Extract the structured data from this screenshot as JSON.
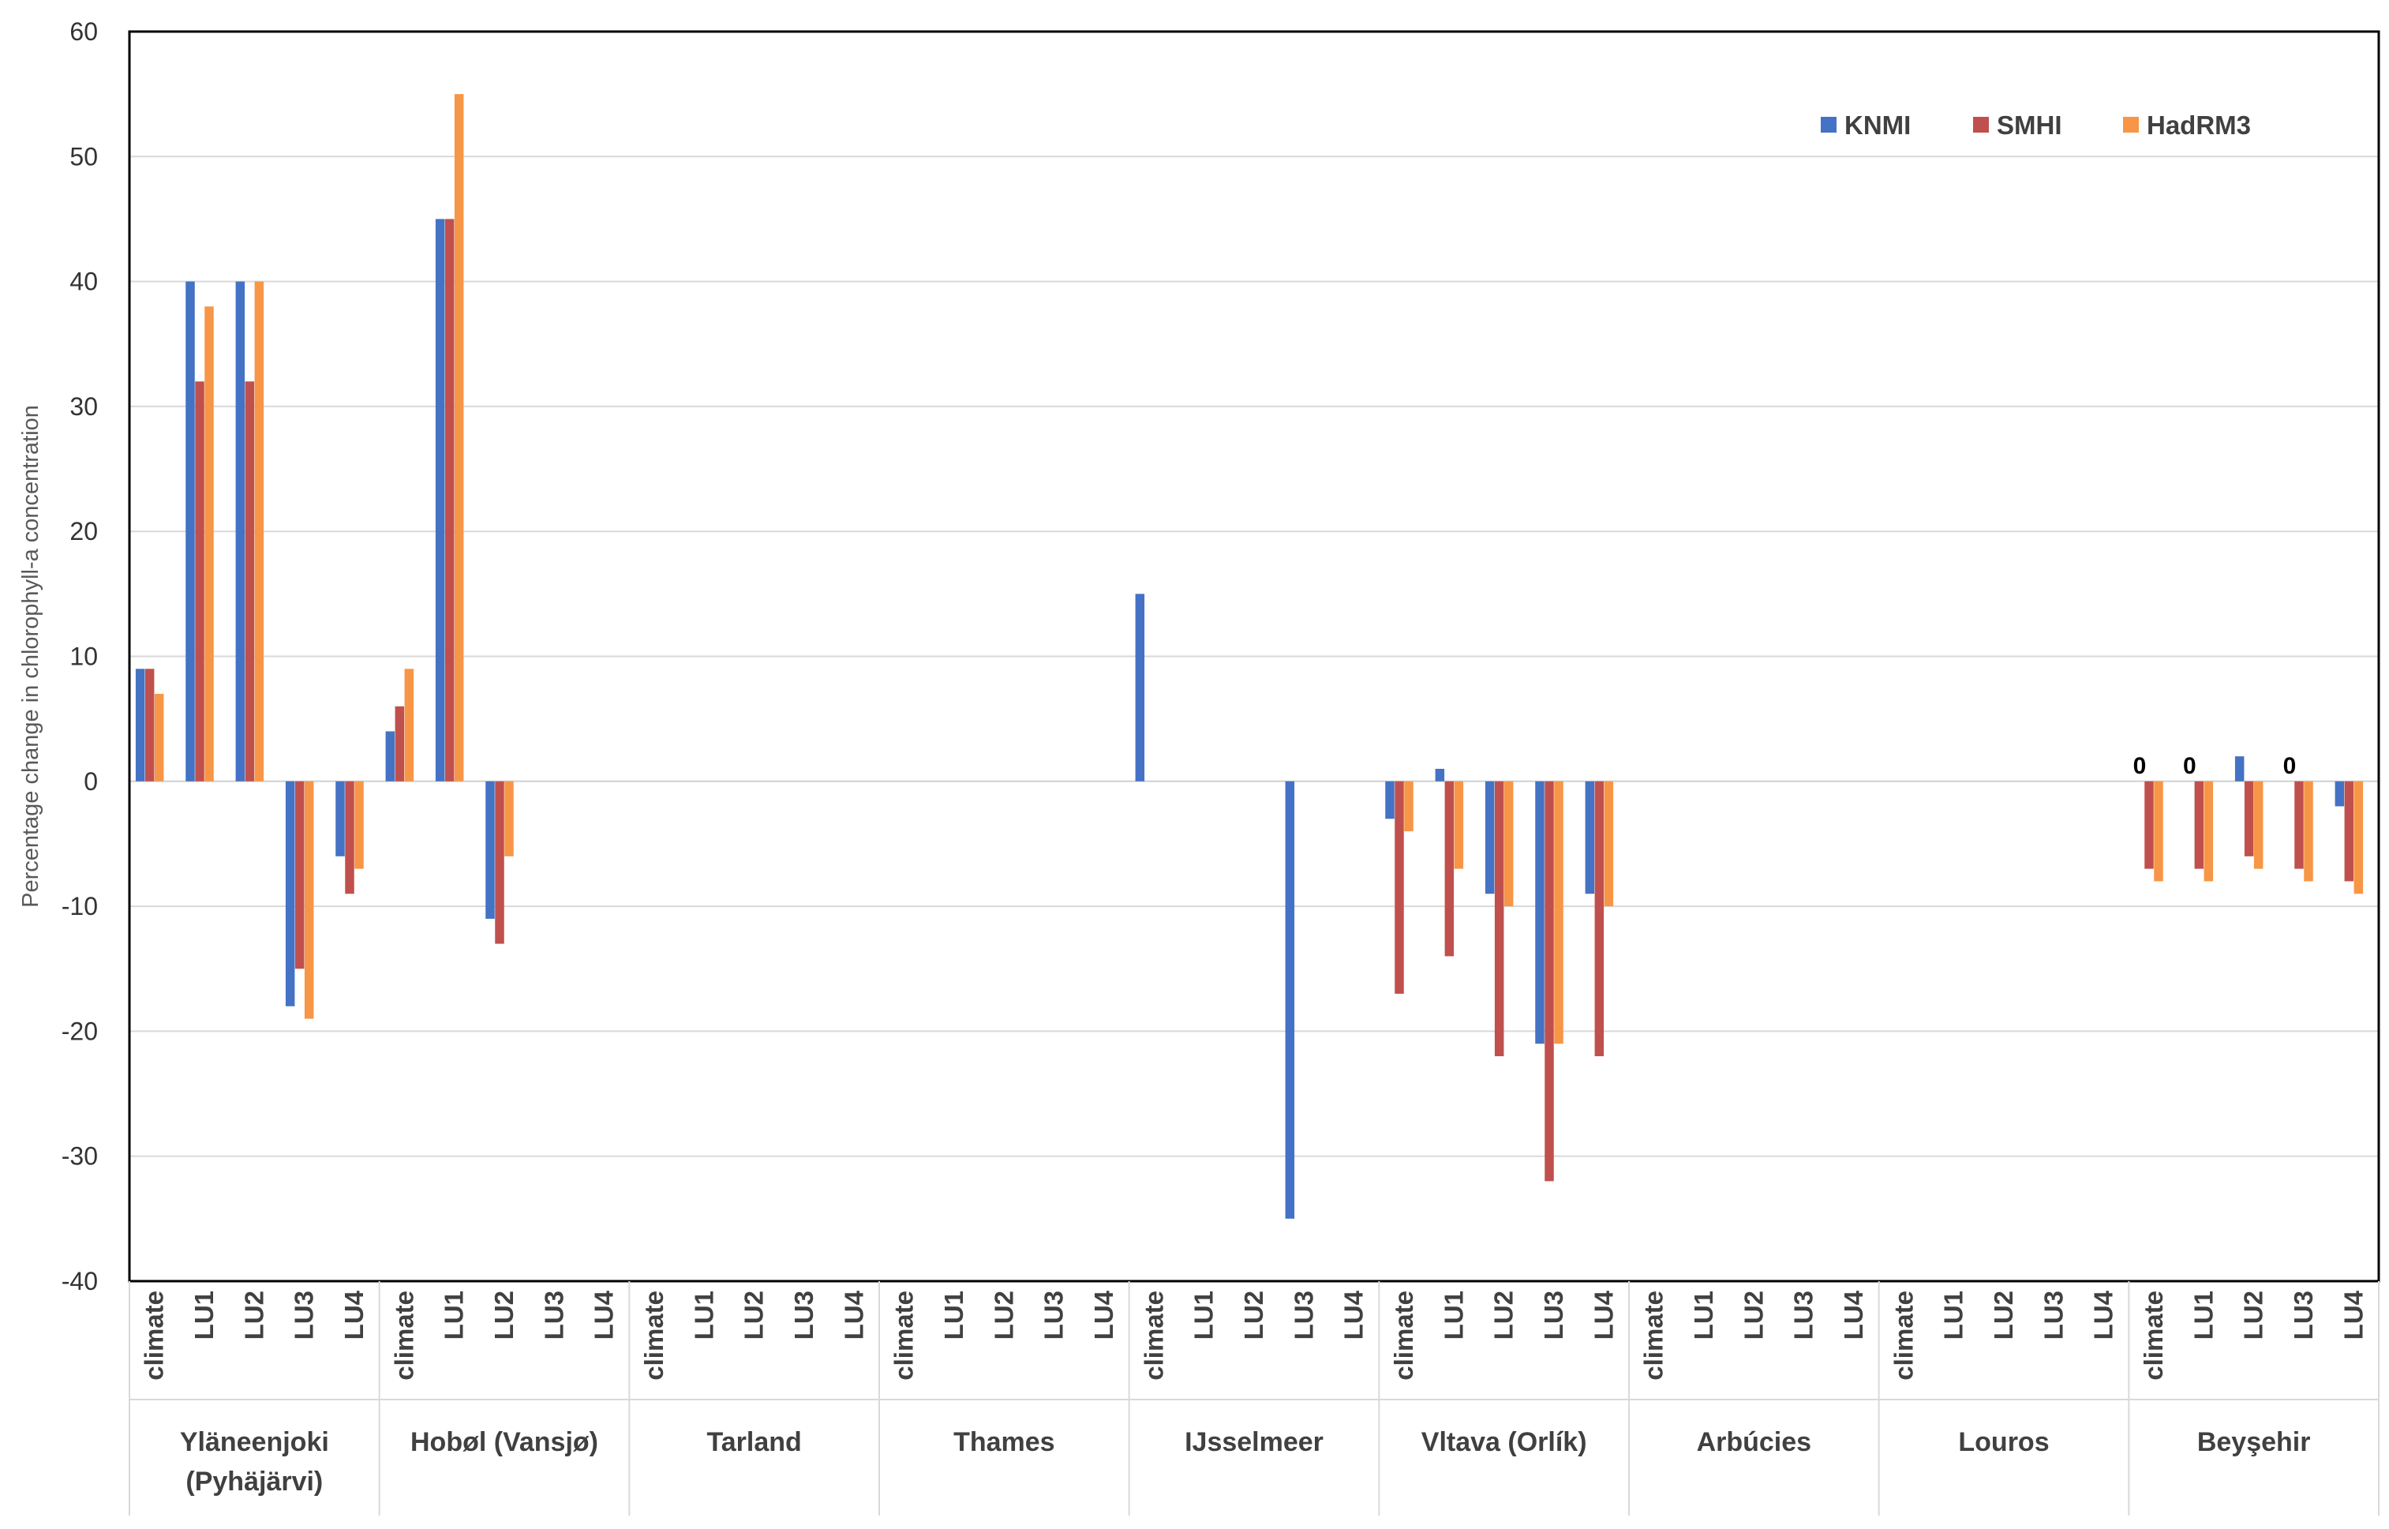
{
  "chart_data": {
    "type": "bar",
    "title": "",
    "ylabel": "Percentage change in chlorophyll-a concentration",
    "xlabel": "",
    "ylim": [
      -40,
      60
    ],
    "yticks": [
      60,
      50,
      40,
      30,
      20,
      10,
      0,
      -10,
      -20,
      -30,
      -40
    ],
    "grid": "horizontal",
    "legend_position": "top-right",
    "colors": {
      "KNMI": "#4472C4",
      "SMHI": "#C0504D",
      "HadRM3": "#F79646"
    },
    "series_names": [
      "KNMI",
      "SMHI",
      "HadRM3"
    ],
    "groups": [
      {
        "name": "Yläneenjoki",
        "name2": "(Pyhäjärvi)",
        "scenarios": [
          "climate",
          "LU1",
          "LU2",
          "LU3",
          "LU4"
        ],
        "values": {
          "KNMI": [
            9,
            40,
            40,
            -18,
            -6
          ],
          "SMHI": [
            9,
            32,
            32,
            -15,
            -9
          ],
          "HadRM3": [
            7,
            38,
            40,
            -19,
            -7
          ]
        }
      },
      {
        "name": "Hobøl (Vansjø)",
        "scenarios": [
          "climate",
          "LU1",
          "LU2",
          "LU3",
          "LU4"
        ],
        "values": {
          "KNMI": [
            4,
            45,
            -11,
            null,
            null
          ],
          "SMHI": [
            6,
            45,
            -13,
            null,
            null
          ],
          "HadRM3": [
            9,
            55,
            -6,
            null,
            null
          ]
        }
      },
      {
        "name": "Tarland",
        "scenarios": [
          "climate",
          "LU1",
          "LU2",
          "LU3",
          "LU4"
        ],
        "values": {
          "KNMI": [
            null,
            null,
            null,
            null,
            null
          ],
          "SMHI": [
            null,
            null,
            null,
            null,
            null
          ],
          "HadRM3": [
            null,
            null,
            null,
            null,
            null
          ]
        }
      },
      {
        "name": "Thames",
        "scenarios": [
          "climate",
          "LU1",
          "LU2",
          "LU3",
          "LU4"
        ],
        "values": {
          "KNMI": [
            null,
            null,
            null,
            null,
            null
          ],
          "SMHI": [
            null,
            null,
            null,
            null,
            null
          ],
          "HadRM3": [
            null,
            null,
            null,
            null,
            null
          ]
        }
      },
      {
        "name": "IJsselmeer",
        "scenarios": [
          "climate",
          "LU1",
          "LU2",
          "LU3",
          "LU4"
        ],
        "values": {
          "KNMI": [
            15,
            null,
            null,
            -35,
            null
          ],
          "SMHI": [
            null,
            null,
            null,
            null,
            null
          ],
          "HadRM3": [
            null,
            null,
            null,
            null,
            null
          ]
        }
      },
      {
        "name": "Vltava (Orlík)",
        "scenarios": [
          "climate",
          "LU1",
          "LU2",
          "LU3",
          "LU4"
        ],
        "values": {
          "KNMI": [
            -3,
            1,
            -9,
            -21,
            -9
          ],
          "SMHI": [
            -17,
            -14,
            -22,
            -32,
            -22
          ],
          "HadRM3": [
            -4,
            -7,
            -10,
            -21,
            -10
          ]
        }
      },
      {
        "name": "Arbúcies",
        "scenarios": [
          "climate",
          "LU1",
          "LU2",
          "LU3",
          "LU4"
        ],
        "values": {
          "KNMI": [
            null,
            null,
            null,
            null,
            null
          ],
          "SMHI": [
            null,
            null,
            null,
            null,
            null
          ],
          "HadRM3": [
            null,
            null,
            null,
            null,
            null
          ]
        }
      },
      {
        "name": "Louros",
        "scenarios": [
          "climate",
          "LU1",
          "LU2",
          "LU3",
          "LU4"
        ],
        "values": {
          "KNMI": [
            null,
            null,
            null,
            null,
            null
          ],
          "SMHI": [
            null,
            null,
            null,
            null,
            null
          ],
          "HadRM3": [
            null,
            null,
            null,
            null,
            null
          ]
        }
      },
      {
        "name": "Beyşehir",
        "scenarios": [
          "climate",
          "LU1",
          "LU2",
          "LU3",
          "LU4"
        ],
        "values": {
          "KNMI": [
            0,
            0,
            2,
            0,
            -2
          ],
          "SMHI": [
            -7,
            -7,
            -6,
            -7,
            -8
          ],
          "HadRM3": [
            -8,
            -8,
            -7,
            -8,
            -9
          ]
        },
        "zero_labels": [
          "0",
          "0",
          null,
          "0",
          null
        ]
      }
    ]
  }
}
